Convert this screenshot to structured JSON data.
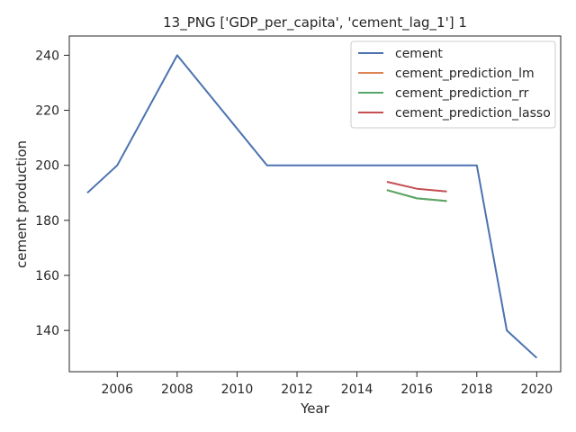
{
  "chart_data": {
    "type": "line",
    "title": "13_PNG ['GDP_per_capita', 'cement_lag_1'] 1",
    "xlabel": "Year",
    "ylabel": "cement production",
    "xlim": [
      2004.4,
      2020.8
    ],
    "ylim": [
      125,
      247
    ],
    "xticks": [
      2006,
      2008,
      2010,
      2012,
      2014,
      2016,
      2018,
      2020
    ],
    "yticks": [
      140,
      160,
      180,
      200,
      220,
      240
    ],
    "grid": false,
    "legend_position": "top-right",
    "series": [
      {
        "name": "cement",
        "color": "#4c72b0",
        "x": [
          2005,
          2006,
          2008,
          2011,
          2018,
          2019,
          2020
        ],
        "y": [
          190,
          200,
          240,
          200,
          200,
          140,
          130
        ]
      },
      {
        "name": "cement_prediction_lm",
        "color": "#dd8452",
        "x": [
          2015,
          2016,
          2017
        ],
        "y": [
          191,
          188,
          187
        ]
      },
      {
        "name": "cement_prediction_rr",
        "color": "#55a868",
        "x": [
          2015,
          2016,
          2017
        ],
        "y": [
          191,
          188,
          187
        ]
      },
      {
        "name": "cement_prediction_lasso",
        "color": "#c44e52",
        "x": [
          2015,
          2016,
          2017
        ],
        "y": [
          194,
          191.5,
          190.5
        ]
      }
    ]
  }
}
